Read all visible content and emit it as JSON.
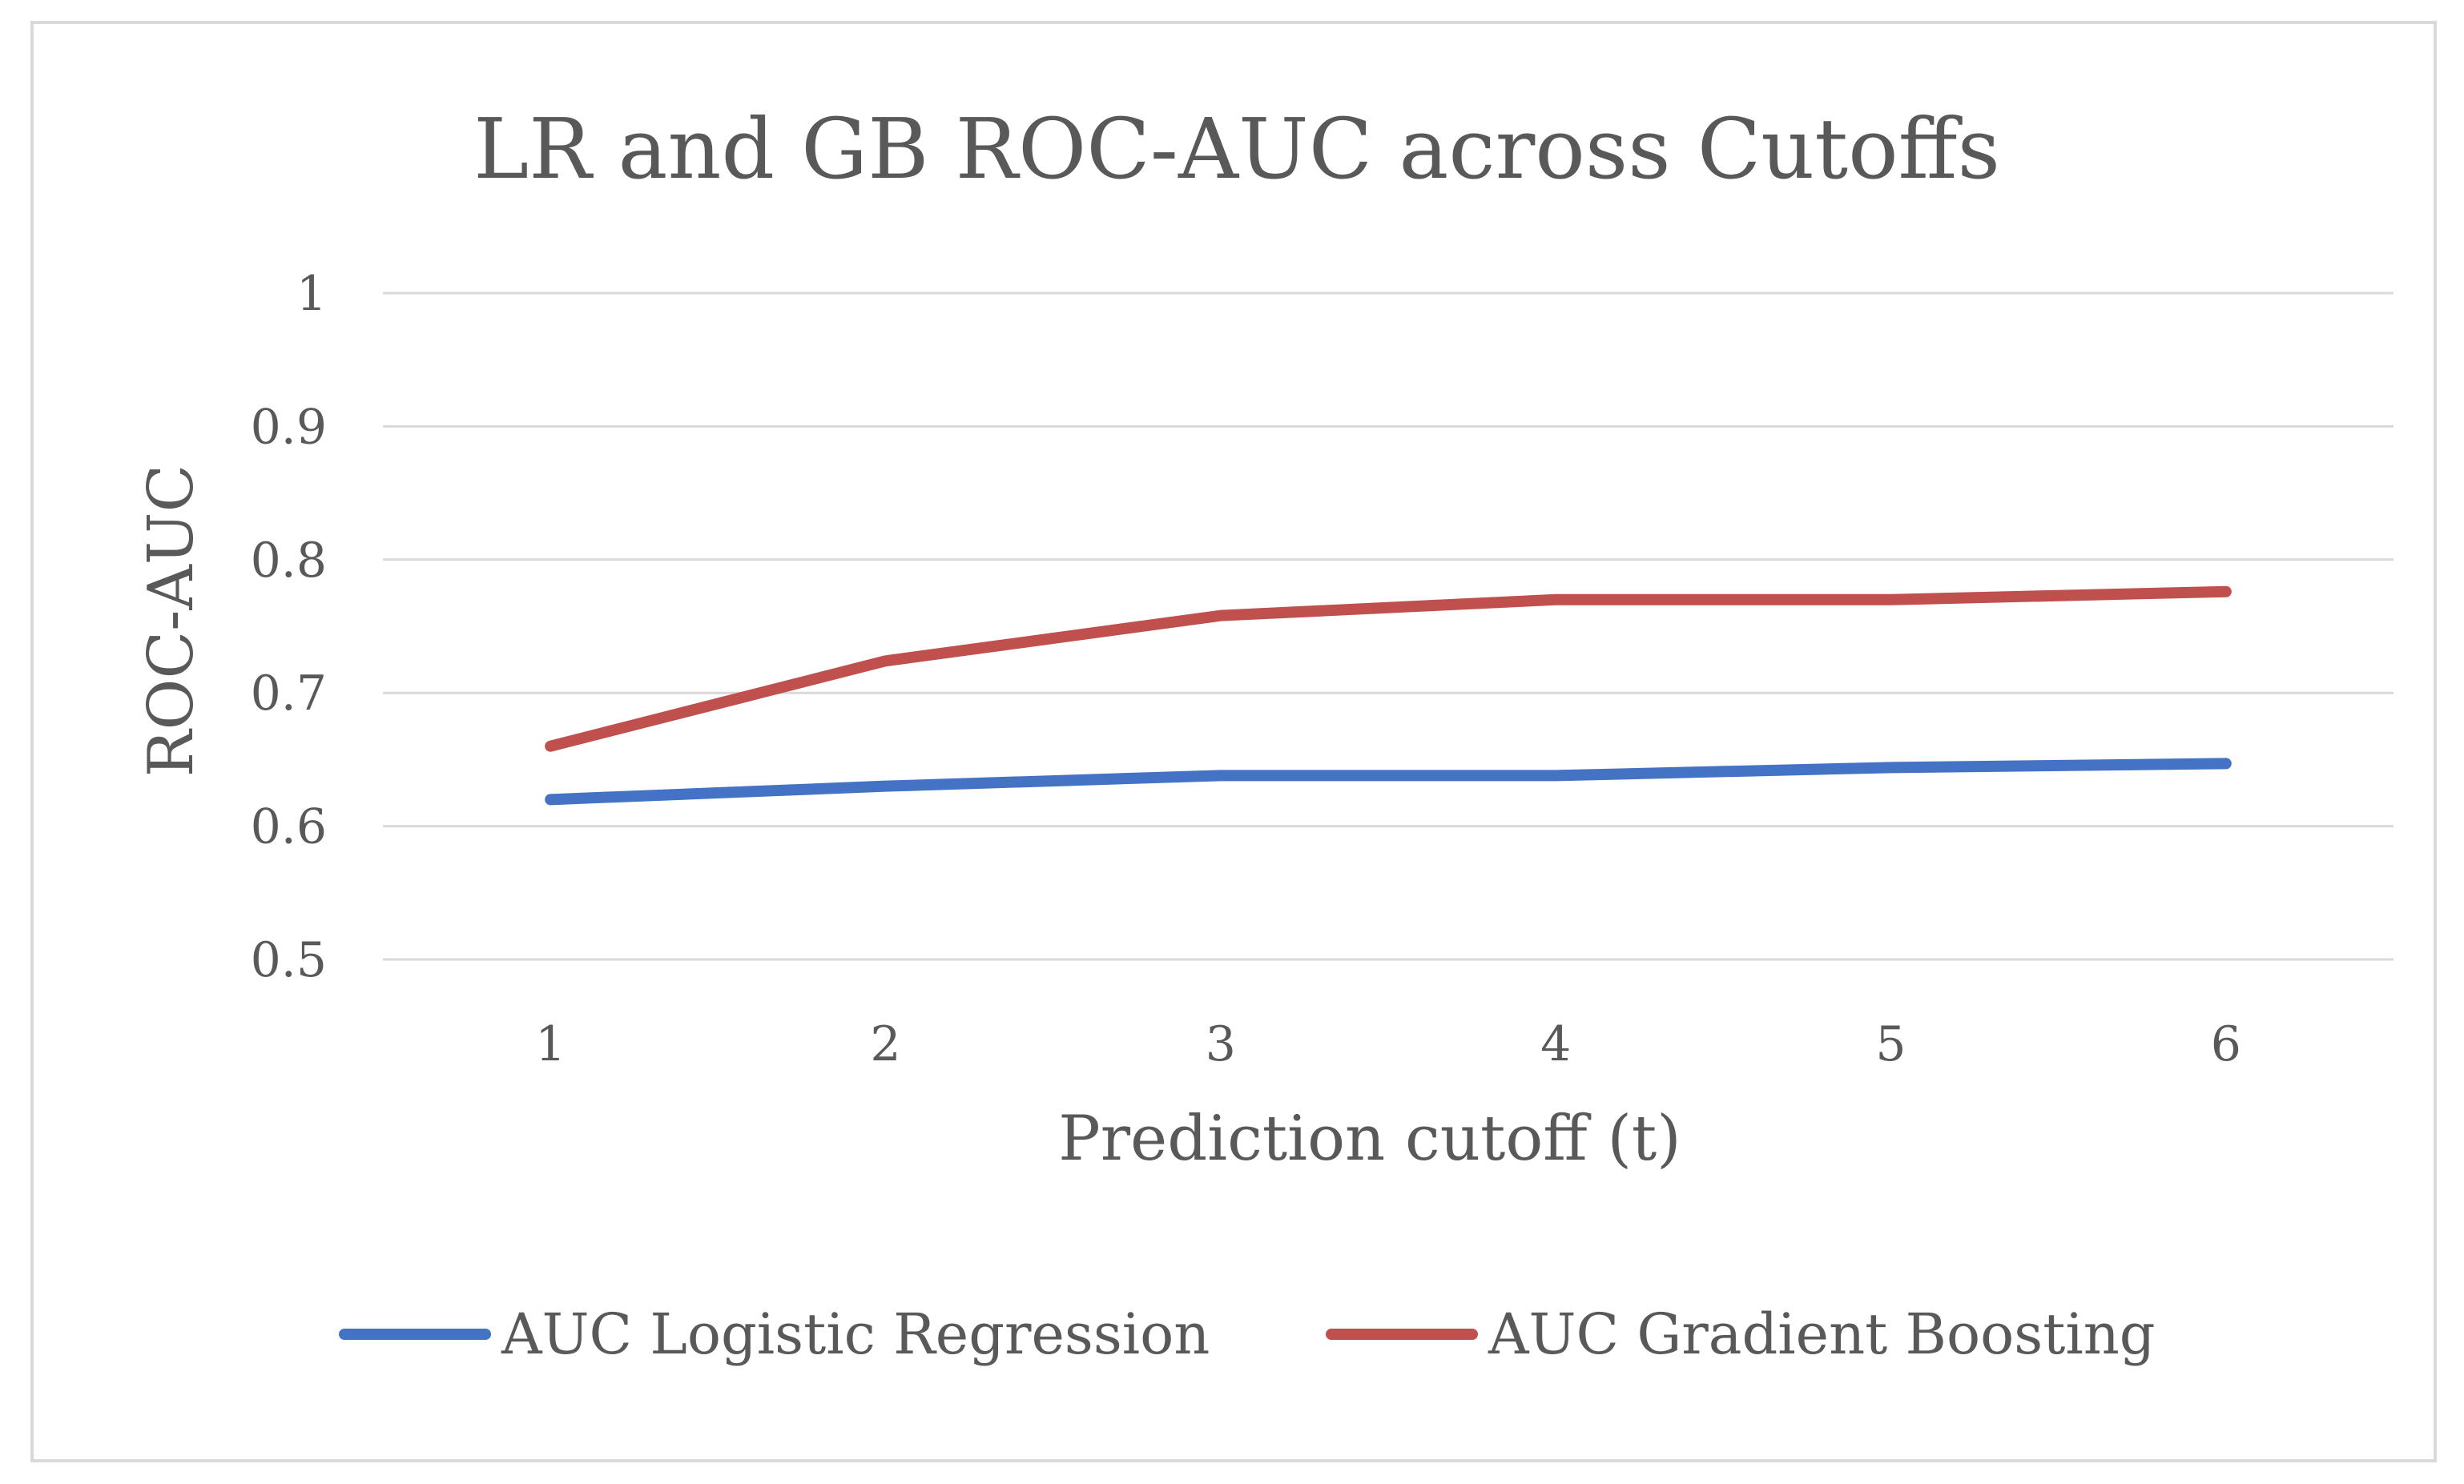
{
  "chart_data": {
    "type": "line",
    "title": "LR and GB ROC-AUC across Cutoffs",
    "xlabel": "Prediction cutoff (t)",
    "ylabel": "ROC-AUC",
    "categories": [
      "1",
      "2",
      "3",
      "4",
      "5",
      "6"
    ],
    "ylim": [
      0.5,
      1
    ],
    "yticks": [
      "0.5",
      "0.6",
      "0.7",
      "0.8",
      "0.9",
      "1"
    ],
    "grid": true,
    "legend_position": "bottom",
    "series": [
      {
        "name": "AUC Logistic Regression",
        "color": "#4472c4",
        "values": [
          0.62,
          0.63,
          0.638,
          0.638,
          0.644,
          0.647
        ]
      },
      {
        "name": "AUC Gradient Boosting",
        "color": "#c0504d",
        "values": [
          0.66,
          0.724,
          0.758,
          0.77,
          0.77,
          0.776
        ]
      }
    ]
  }
}
